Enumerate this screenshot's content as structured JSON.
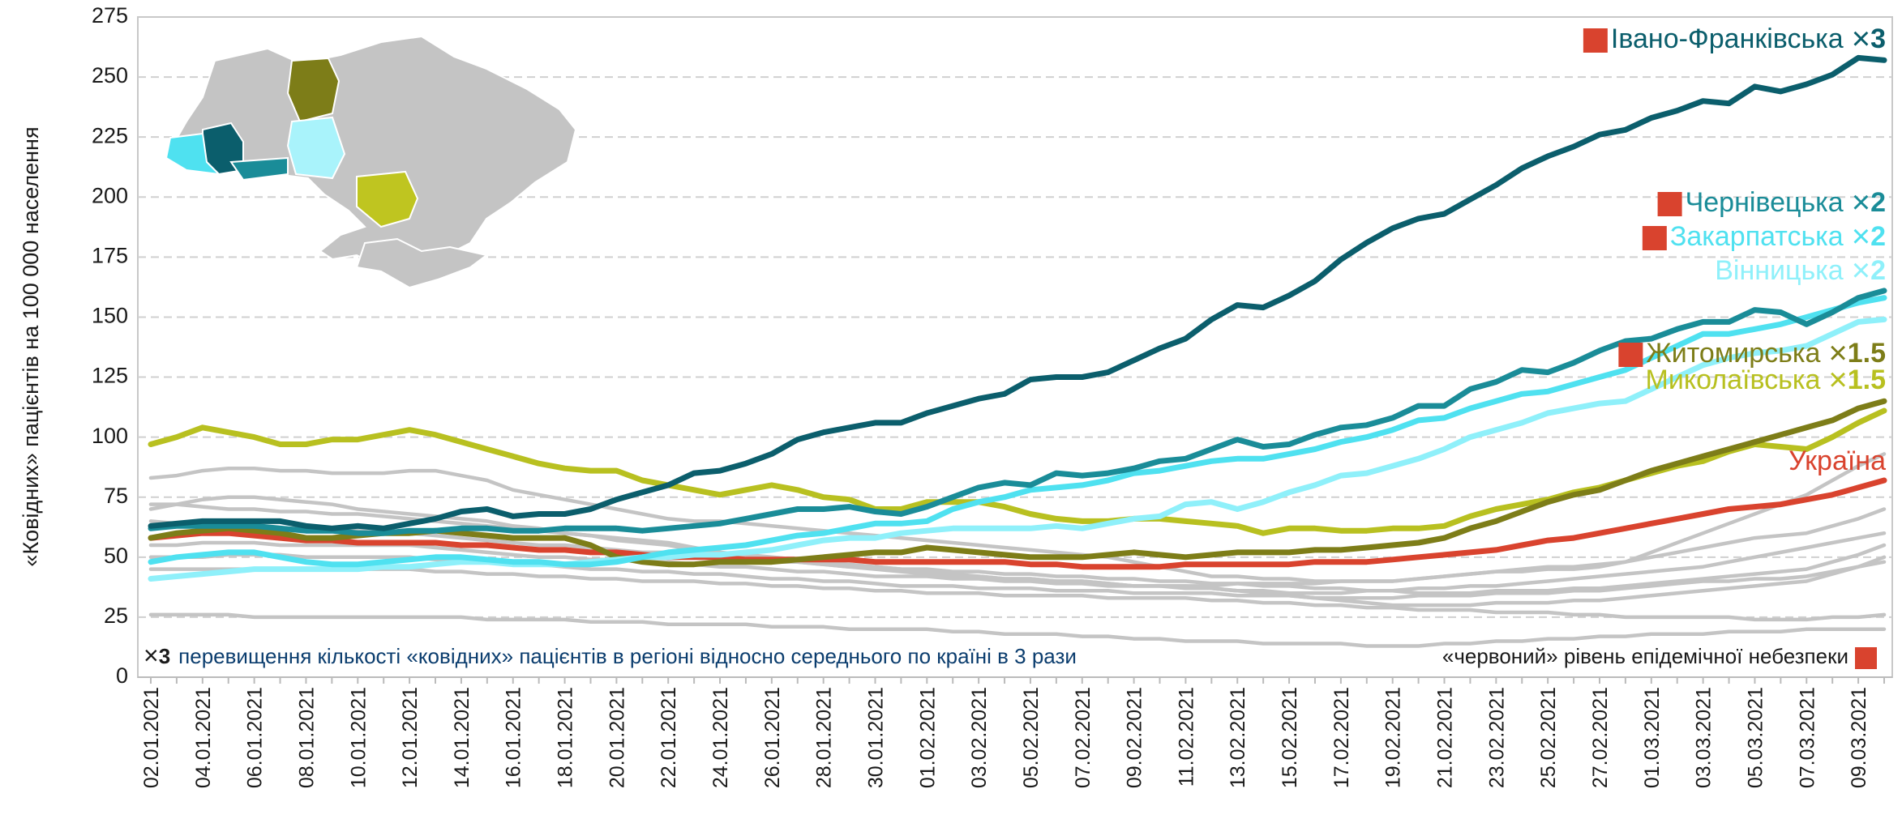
{
  "chart_data": {
    "type": "line",
    "ylabel": "«Ковідних» пацієнтів на 100 000 населення",
    "ylim": [
      0,
      275
    ],
    "yticks": [
      0,
      25,
      50,
      75,
      100,
      125,
      150,
      175,
      200,
      225,
      250,
      275
    ],
    "grid": true,
    "factor_symbol": "×",
    "note_left": {
      "factor": 3,
      "text": "перевищення кількості «ковідних» пацієнтів в регіоні відносно середнього по країні в 3 рази"
    },
    "note_right": "«червоний» рівень епідемічної небезпеки",
    "red_color": "#d9432e",
    "categories": [
      "02.01.2021",
      null,
      "04.01.2021",
      null,
      "06.01.2021",
      null,
      "08.01.2021",
      null,
      "10.01.2021",
      null,
      "12.01.2021",
      null,
      "14.01.2021",
      null,
      "16.01.2021",
      null,
      "18.01.2021",
      null,
      "20.01.2021",
      null,
      "22.01.2021",
      null,
      "24.01.2021",
      null,
      "26.01.2021",
      null,
      "28.01.2021",
      null,
      "30.01.2021",
      null,
      "01.02.2021",
      null,
      "03.02.2021",
      null,
      "05.02.2021",
      null,
      "07.02.2021",
      null,
      "09.02.2021",
      null,
      "11.02.2021",
      null,
      "13.02.2021",
      null,
      "15.02.2021",
      null,
      "17.02.2021",
      null,
      "19.02.2021",
      null,
      "21.02.2021",
      null,
      "23.02.2021",
      null,
      "25.02.2021",
      null,
      "27.02.2021",
      null,
      "01.03.2021",
      null,
      "03.03.2021",
      null,
      "05.03.2021",
      null,
      "07.03.2021",
      null,
      "09.03.2021",
      null
    ],
    "series": [
      {
        "color": "#c4c4c4",
        "values": [
          83,
          84,
          86,
          87,
          87,
          86,
          86,
          85,
          85,
          85,
          86,
          86,
          84,
          82,
          78,
          76,
          74,
          72,
          70,
          68,
          66,
          65,
          65,
          64,
          63,
          62,
          61,
          60,
          59,
          58,
          57,
          56,
          55,
          54,
          53,
          52,
          51,
          50,
          48,
          46,
          44,
          42,
          42,
          41,
          41,
          40,
          40,
          40,
          40,
          41,
          42,
          43,
          44,
          44,
          45,
          45,
          46,
          48,
          52,
          56,
          60,
          64,
          68,
          72,
          76,
          82,
          88,
          93
        ]
      },
      {
        "color": "#c4c4c4",
        "values": [
          26,
          26,
          26,
          26,
          25,
          25,
          25,
          25,
          25,
          25,
          25,
          25,
          25,
          24,
          24,
          24,
          24,
          23,
          23,
          23,
          22,
          22,
          22,
          22,
          21,
          21,
          21,
          20,
          20,
          20,
          20,
          19,
          19,
          18,
          18,
          18,
          17,
          17,
          16,
          16,
          15,
          15,
          15,
          14,
          14,
          14,
          14,
          13,
          13,
          13,
          14,
          14,
          15,
          15,
          16,
          16,
          17,
          17,
          18,
          18,
          18,
          19,
          19,
          19,
          20,
          20,
          20,
          20
        ]
      },
      {
        "color": "#c4c4c4",
        "values": [
          70,
          72,
          74,
          75,
          75,
          74,
          73,
          72,
          70,
          69,
          68,
          67,
          66,
          65,
          63,
          62,
          60,
          59,
          58,
          57,
          56,
          54,
          52,
          50,
          49,
          48,
          47,
          46,
          45,
          44,
          43,
          42,
          42,
          41,
          41,
          40,
          40,
          39,
          38,
          38,
          37,
          37,
          36,
          36,
          35,
          35,
          35,
          36,
          36,
          37,
          37,
          38,
          38,
          39,
          40,
          41,
          42,
          43,
          44,
          45,
          46,
          48,
          50,
          52,
          54,
          56,
          58,
          60
        ]
      },
      {
        "color": "#c4c4c4",
        "values": [
          72,
          72,
          71,
          70,
          70,
          69,
          69,
          68,
          68,
          67,
          66,
          65,
          64,
          63,
          62,
          61,
          60,
          59,
          57,
          56,
          55,
          53,
          52,
          51,
          50,
          49,
          48,
          47,
          46,
          45,
          44,
          43,
          42,
          41,
          41,
          40,
          40,
          39,
          38,
          38,
          38,
          37,
          36,
          35,
          34,
          33,
          32,
          31,
          30,
          30,
          30,
          30,
          31,
          31,
          31,
          32,
          32,
          33,
          34,
          35,
          36,
          37,
          38,
          39,
          40,
          43,
          46,
          50
        ]
      },
      {
        "color": "#c4c4c4",
        "values": [
          45,
          45,
          45,
          45,
          45,
          45,
          45,
          45,
          45,
          45,
          45,
          44,
          44,
          43,
          43,
          42,
          42,
          41,
          41,
          40,
          40,
          40,
          39,
          39,
          38,
          38,
          37,
          37,
          36,
          36,
          35,
          35,
          35,
          34,
          34,
          34,
          34,
          33,
          33,
          33,
          33,
          32,
          32,
          31,
          31,
          30,
          30,
          29,
          29,
          28,
          28,
          28,
          27,
          27,
          27,
          26,
          26,
          25,
          25,
          25,
          25,
          25,
          24,
          24,
          24,
          25,
          25,
          26
        ]
      },
      {
        "color": "#c4c4c4",
        "values": [
          55,
          55,
          56,
          56,
          56,
          55,
          55,
          55,
          55,
          55,
          55,
          54,
          53,
          52,
          51,
          50,
          50,
          49,
          49,
          48,
          48,
          47,
          46,
          46,
          45,
          44,
          44,
          43,
          42,
          42,
          42,
          41,
          41,
          40,
          40,
          39,
          39,
          38,
          38,
          38,
          38,
          38,
          39,
          39,
          39,
          39,
          40,
          40,
          40,
          41,
          42,
          43,
          44,
          45,
          46,
          46,
          47,
          48,
          50,
          52,
          54,
          56,
          58,
          59,
          60,
          63,
          66,
          70
        ]
      },
      {
        "color": "#c4c4c4",
        "values": [
          65,
          64,
          64,
          63,
          63,
          62,
          62,
          61,
          61,
          60,
          60,
          59,
          58,
          57,
          56,
          55,
          55,
          54,
          53,
          52,
          52,
          51,
          50,
          49,
          48,
          48,
          47,
          46,
          46,
          45,
          45,
          44,
          44,
          43,
          43,
          42,
          42,
          41,
          41,
          40,
          40,
          39,
          39,
          38,
          38,
          37,
          37,
          36,
          36,
          35,
          35,
          35,
          36,
          36,
          36,
          37,
          37,
          38,
          39,
          40,
          41,
          42,
          43,
          44,
          45,
          48,
          51,
          55
        ]
      },
      {
        "color": "#c4c4c4",
        "values": [
          50,
          50,
          50,
          51,
          51,
          51,
          50,
          50,
          50,
          50,
          50,
          49,
          49,
          48,
          47,
          47,
          46,
          45,
          45,
          44,
          44,
          43,
          43,
          42,
          41,
          41,
          40,
          40,
          39,
          38,
          38,
          38,
          37,
          37,
          37,
          36,
          36,
          36,
          35,
          35,
          35,
          35,
          34,
          34,
          34,
          33,
          33,
          33,
          33,
          34,
          34,
          34,
          35,
          35,
          35,
          36,
          36,
          37,
          38,
          39,
          40,
          40,
          41,
          41,
          42,
          44,
          46,
          48
        ]
      },
      {
        "name": "Україна",
        "color": "#d9432e",
        "values": [
          58,
          59,
          60,
          60,
          59,
          58,
          57,
          57,
          56,
          56,
          56,
          56,
          55,
          55,
          54,
          53,
          53,
          52,
          52,
          51,
          50,
          50,
          50,
          49,
          49,
          49,
          49,
          49,
          48,
          48,
          48,
          48,
          48,
          48,
          47,
          47,
          46,
          46,
          46,
          46,
          47,
          47,
          47,
          47,
          47,
          48,
          48,
          48,
          49,
          50,
          51,
          52,
          53,
          55,
          57,
          58,
          60,
          62,
          64,
          66,
          68,
          70,
          71,
          72,
          74,
          76,
          79,
          82
        ]
      },
      {
        "name": "Миколаївська",
        "color": "#b8c020",
        "factor": 1.5,
        "values": [
          97,
          100,
          104,
          102,
          100,
          97,
          97,
          99,
          99,
          101,
          103,
          101,
          98,
          95,
          92,
          89,
          87,
          86,
          86,
          82,
          80,
          78,
          76,
          78,
          80,
          78,
          75,
          74,
          70,
          70,
          73,
          73,
          73,
          71,
          68,
          66,
          65,
          65,
          66,
          66,
          65,
          64,
          63,
          60,
          62,
          62,
          61,
          61,
          62,
          62,
          63,
          67,
          70,
          72,
          74,
          77,
          79,
          82,
          85,
          88,
          90,
          94,
          97,
          96,
          95,
          100,
          106,
          111
        ]
      },
      {
        "name": "Житомирська",
        "color": "#7d7d18",
        "factor": 1.5,
        "red": true,
        "values": [
          58,
          60,
          61,
          62,
          61,
          60,
          58,
          58,
          59,
          60,
          60,
          61,
          60,
          59,
          58,
          58,
          58,
          55,
          50,
          48,
          47,
          47,
          48,
          48,
          48,
          49,
          50,
          51,
          52,
          52,
          54,
          53,
          52,
          51,
          50,
          50,
          50,
          51,
          52,
          51,
          50,
          51,
          52,
          52,
          52,
          53,
          53,
          54,
          55,
          56,
          58,
          62,
          65,
          69,
          73,
          76,
          78,
          82,
          86,
          89,
          92,
          95,
          98,
          101,
          104,
          107,
          112,
          115
        ]
      },
      {
        "name": "Вінницька",
        "color": "#8ff0fa",
        "factor": 2,
        "values": [
          41,
          42,
          43,
          44,
          45,
          45,
          45,
          45,
          45,
          46,
          46,
          47,
          48,
          48,
          47,
          47,
          47,
          48,
          49,
          50,
          50,
          51,
          51,
          52,
          53,
          55,
          57,
          58,
          58,
          60,
          61,
          62,
          62,
          62,
          62,
          63,
          62,
          64,
          66,
          67,
          72,
          73,
          70,
          73,
          77,
          80,
          84,
          85,
          88,
          91,
          95,
          100,
          103,
          106,
          110,
          112,
          114,
          115,
          120,
          125,
          130,
          133,
          135,
          136,
          138,
          143,
          148,
          149
        ]
      },
      {
        "name": "Закарпатська",
        "color": "#4fe1f0",
        "factor": 2,
        "red": true,
        "values": [
          48,
          50,
          51,
          52,
          52,
          50,
          48,
          47,
          47,
          48,
          49,
          50,
          50,
          49,
          48,
          48,
          47,
          47,
          48,
          50,
          52,
          53,
          54,
          55,
          57,
          59,
          60,
          62,
          64,
          64,
          65,
          70,
          73,
          75,
          78,
          79,
          80,
          82,
          85,
          86,
          88,
          90,
          91,
          91,
          93,
          95,
          98,
          100,
          103,
          107,
          108,
          112,
          115,
          118,
          119,
          122,
          125,
          128,
          133,
          138,
          143,
          143,
          145,
          147,
          150,
          153,
          156,
          158
        ]
      },
      {
        "name": "Чернівецька",
        "color": "#1a8c98",
        "factor": 2,
        "red": true,
        "values": [
          62,
          63,
          63,
          63,
          63,
          62,
          61,
          61,
          60,
          60,
          61,
          61,
          62,
          62,
          61,
          61,
          62,
          62,
          62,
          61,
          62,
          63,
          64,
          66,
          68,
          70,
          70,
          71,
          69,
          68,
          71,
          75,
          79,
          81,
          80,
          85,
          84,
          85,
          87,
          90,
          91,
          95,
          99,
          96,
          97,
          101,
          104,
          105,
          108,
          113,
          113,
          120,
          123,
          128,
          127,
          131,
          136,
          140,
          141,
          145,
          148,
          148,
          153,
          152,
          147,
          152,
          158,
          161
        ]
      },
      {
        "name": "Івано-Франківська",
        "color": "#0b5e6c",
        "factor": 3,
        "red": true,
        "values": [
          63,
          64,
          65,
          65,
          65,
          65,
          63,
          62,
          63,
          62,
          64,
          66,
          69,
          70,
          67,
          68,
          68,
          70,
          74,
          77,
          80,
          85,
          86,
          89,
          93,
          99,
          102,
          104,
          106,
          106,
          110,
          113,
          116,
          118,
          124,
          125,
          125,
          127,
          132,
          137,
          141,
          149,
          155,
          154,
          159,
          165,
          174,
          181,
          187,
          191,
          193,
          199,
          205,
          212,
          217,
          221,
          226,
          228,
          233,
          236,
          240,
          239,
          246,
          244,
          247,
          251,
          258,
          257
        ]
      }
    ]
  }
}
